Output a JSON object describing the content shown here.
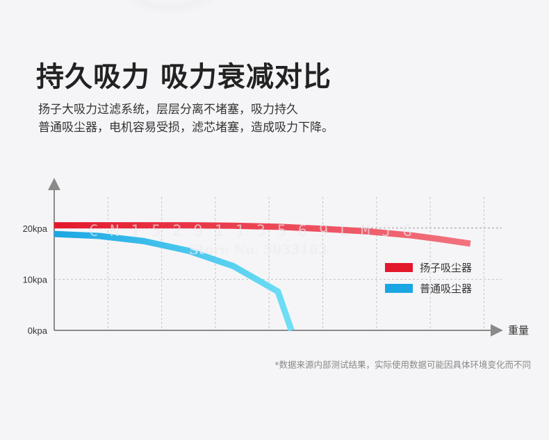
{
  "header": {
    "title": "持久吸力 吸力衰减对比",
    "subtitle_lines": [
      "扬子大吸力过滤系统，层层分离不堵塞，吸力持久",
      "普通吸尘器，电机容易受损，滤芯堵塞，造成吸力下降。"
    ]
  },
  "watermark": {
    "code": "C N 1 5 2 9 1 1 3 5 6 9 L M J G",
    "store": "Store No. 5033163"
  },
  "footnote": "*数据来源内部测试结果，实际使用数据可能因具体环境变化而不同",
  "chart_data": {
    "type": "line",
    "xlabel": "重量",
    "ylabel": "",
    "y_ticks": [
      {
        "value": 0,
        "label": "0kpa"
      },
      {
        "value": 10,
        "label": "10kpa"
      },
      {
        "value": 20,
        "label": "20kpa"
      }
    ],
    "ylim": [
      0,
      27
    ],
    "xlim": [
      0,
      10
    ],
    "grid": true,
    "legend_position": "right",
    "series": [
      {
        "name": "扬子吸尘器",
        "color": "#e3182b",
        "color_end": "#f2737f",
        "points": [
          [
            0,
            20.6
          ],
          [
            1,
            20.6
          ],
          [
            2,
            20.6
          ],
          [
            3,
            20.6
          ],
          [
            4,
            20.5
          ],
          [
            5,
            20.3
          ],
          [
            6,
            19.9
          ],
          [
            7,
            19.4
          ],
          [
            8,
            18.6
          ],
          [
            8.6,
            17.9
          ],
          [
            9.3,
            17.0
          ]
        ]
      },
      {
        "name": "普通吸尘器",
        "color": "#1aa6e3",
        "color_end": "#6fdff5",
        "points": [
          [
            0,
            18.9
          ],
          [
            1,
            18.5
          ],
          [
            2,
            17.5
          ],
          [
            3,
            15.6
          ],
          [
            4,
            12.6
          ],
          [
            5,
            7.6
          ],
          [
            5.3,
            0
          ]
        ]
      }
    ]
  }
}
